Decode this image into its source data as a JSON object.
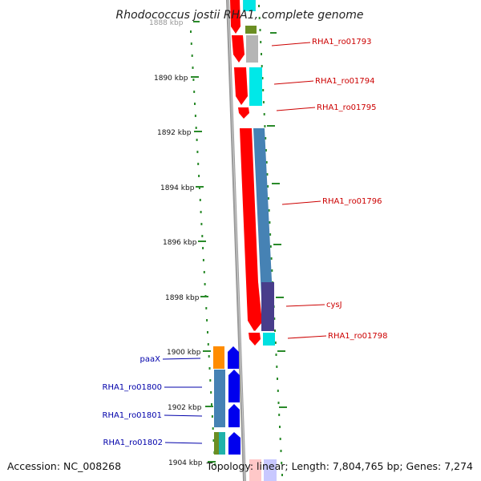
{
  "title": "Rhodococcus jostii RHA1, complete genome",
  "accession": "Accession: NC_008268",
  "topology": "Topology: linear; Length: 7,804,765 bp; Genes: 7,274",
  "ruler": {
    "tick_labels": [
      "1888 kbp",
      "1890 kbp",
      "1892 kbp",
      "1894 kbp",
      "1896 kbp",
      "1898 kbp",
      "1900 kbp",
      "1902 kbp",
      "1904 kbp"
    ]
  },
  "colors": {
    "forward_label": "#cc0000",
    "reverse_label": "#0000aa",
    "backbone": "#999999",
    "tick": "#2a8a2a"
  },
  "genes": {
    "forward_labels": [
      "RHA1_ro01793",
      "RHA1_ro01794",
      "RHA1_ro01795",
      "RHA1_ro01796",
      "cysJ",
      "RHA1_ro01798"
    ],
    "reverse_labels": [
      "paaX",
      "RHA1_ro01800",
      "RHA1_ro01801",
      "RHA1_ro01802"
    ]
  }
}
